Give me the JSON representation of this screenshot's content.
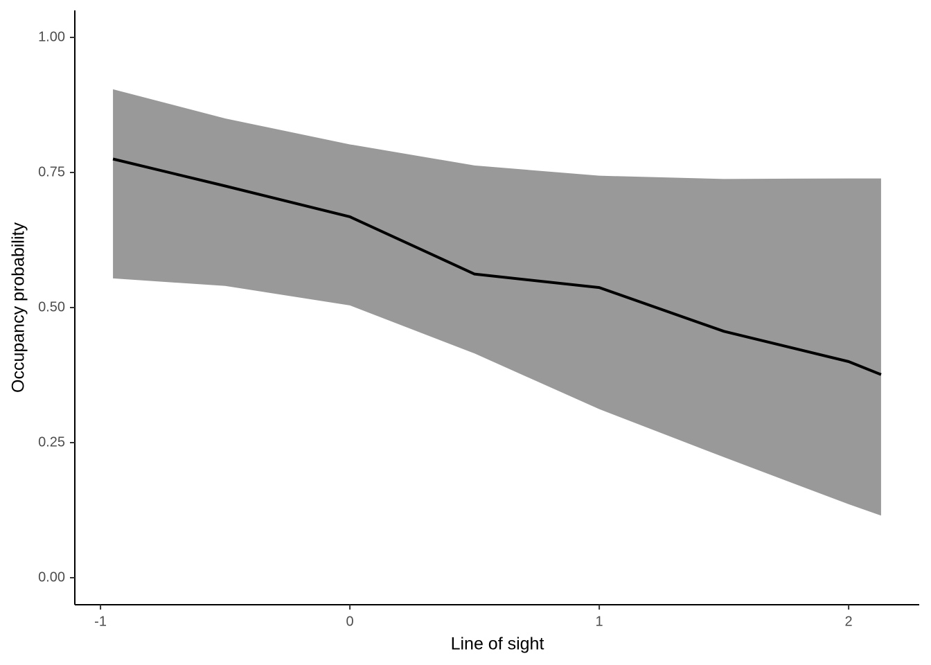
{
  "chart_data": {
    "type": "line",
    "x_label": "Line of sight",
    "y_label": "Occupancy probability",
    "x": [
      -0.95,
      -0.5,
      0,
      0.5,
      1,
      1.5,
      2,
      2.13
    ],
    "values": [
      0.775,
      0.725,
      0.668,
      0.562,
      0.537,
      0.456,
      0.4,
      0.376
    ],
    "upper": [
      0.904,
      0.85,
      0.802,
      0.763,
      0.744,
      0.738,
      0.739,
      0.739
    ],
    "lower": [
      0.554,
      0.54,
      0.504,
      0.415,
      0.312,
      0.223,
      0.136,
      0.115
    ],
    "color": "#000000",
    "band_color": "#999999",
    "xlim": [
      -1.103,
      2.283
    ],
    "ylim": [
      -0.05,
      1.05
    ],
    "xticks": [
      -1,
      0,
      1,
      2
    ],
    "yticks": [
      {
        "value": 0,
        "label": "0.00"
      },
      {
        "value": 0.25,
        "label": "0.25"
      },
      {
        "value": 0.5,
        "label": "0.50"
      },
      {
        "value": 0.75,
        "label": "0.75"
      },
      {
        "value": 1,
        "label": "1.00"
      }
    ]
  }
}
